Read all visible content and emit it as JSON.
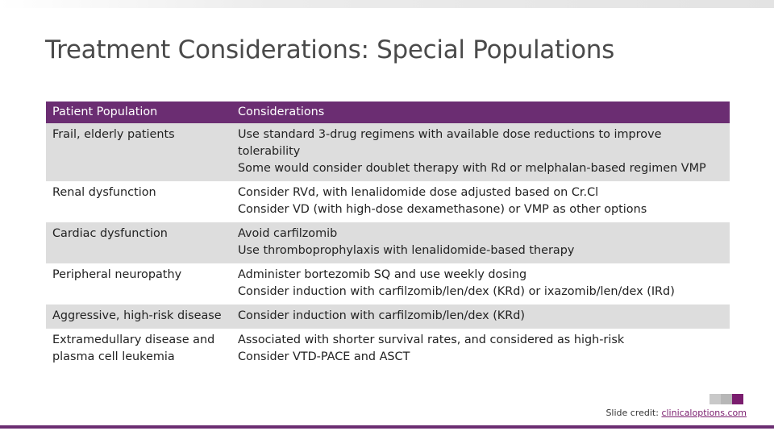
{
  "slide": {
    "title": "Treatment Considerations: Special Populations"
  },
  "table": {
    "headers": [
      "Patient Population",
      "Considerations"
    ],
    "rows": [
      {
        "population": "Frail, elderly patients",
        "considerations": [
          "Use standard 3-drug regimens with available dose reductions to improve tolerability",
          "Some would consider doublet therapy with Rd or melphalan-based regimen VMP"
        ]
      },
      {
        "population": "Renal dysfunction",
        "considerations": [
          "Consider RVd, with lenalidomide dose adjusted based on Cr.Cl",
          "Consider VD (with high-dose dexamethasone) or VMP as other options"
        ]
      },
      {
        "population": "Cardiac dysfunction",
        "considerations": [
          "Avoid carfilzomib",
          "Use thromboprophylaxis with lenalidomide-based therapy"
        ]
      },
      {
        "population": "Peripheral neuropathy",
        "considerations": [
          "Administer bortezomib SQ and use weekly dosing",
          "Consider induction with carfilzomib/len/dex (KRd) or ixazomib/len/dex (IRd)"
        ]
      },
      {
        "population": "Aggressive, high-risk disease",
        "considerations": [
          "Consider induction with carfilzomib/len/dex (KRd)"
        ]
      },
      {
        "population": "Extramedullary disease and plasma cell leukemia",
        "considerations": [
          "Associated with shorter survival rates, and considered as high-risk",
          "Consider VTD-PACE and ASCT"
        ]
      }
    ]
  },
  "footer": {
    "credit_label": "Slide credit: ",
    "credit_link": "clinicaloptions.com"
  },
  "colors": {
    "header_bg": "#6b2d72",
    "alt_row_bg": "#dddddd",
    "accent": "#7a1d6e"
  },
  "icons": {
    "logo": "cco-logo"
  }
}
